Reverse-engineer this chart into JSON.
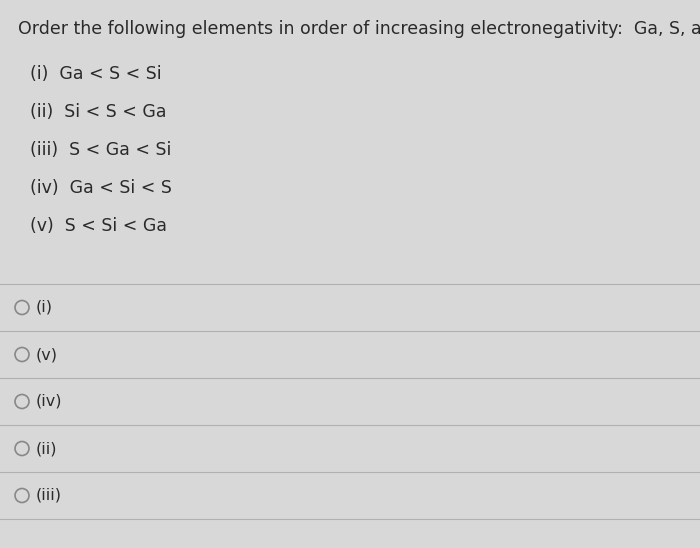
{
  "background_color": "#d8d8d8",
  "question_text": "Order the following elements in order of increasing electronegativity:  Ga, S, and Si.",
  "options": [
    "(i)  Ga < S < Si",
    "(ii)  Si < S < Ga",
    "(iii)  S < Ga < Si",
    "(iv)  Ga < Si < S",
    "(v)  S < Si < Ga"
  ],
  "radio_labels": [
    "(i)",
    "(v)",
    "(iv)",
    "(ii)",
    "(iii)"
  ],
  "question_font_size": 12.5,
  "option_font_size": 12.5,
  "radio_font_size": 11.5,
  "text_color": "#2a2a2a",
  "line_color": "#b0b0b0",
  "circle_color": "#888888"
}
